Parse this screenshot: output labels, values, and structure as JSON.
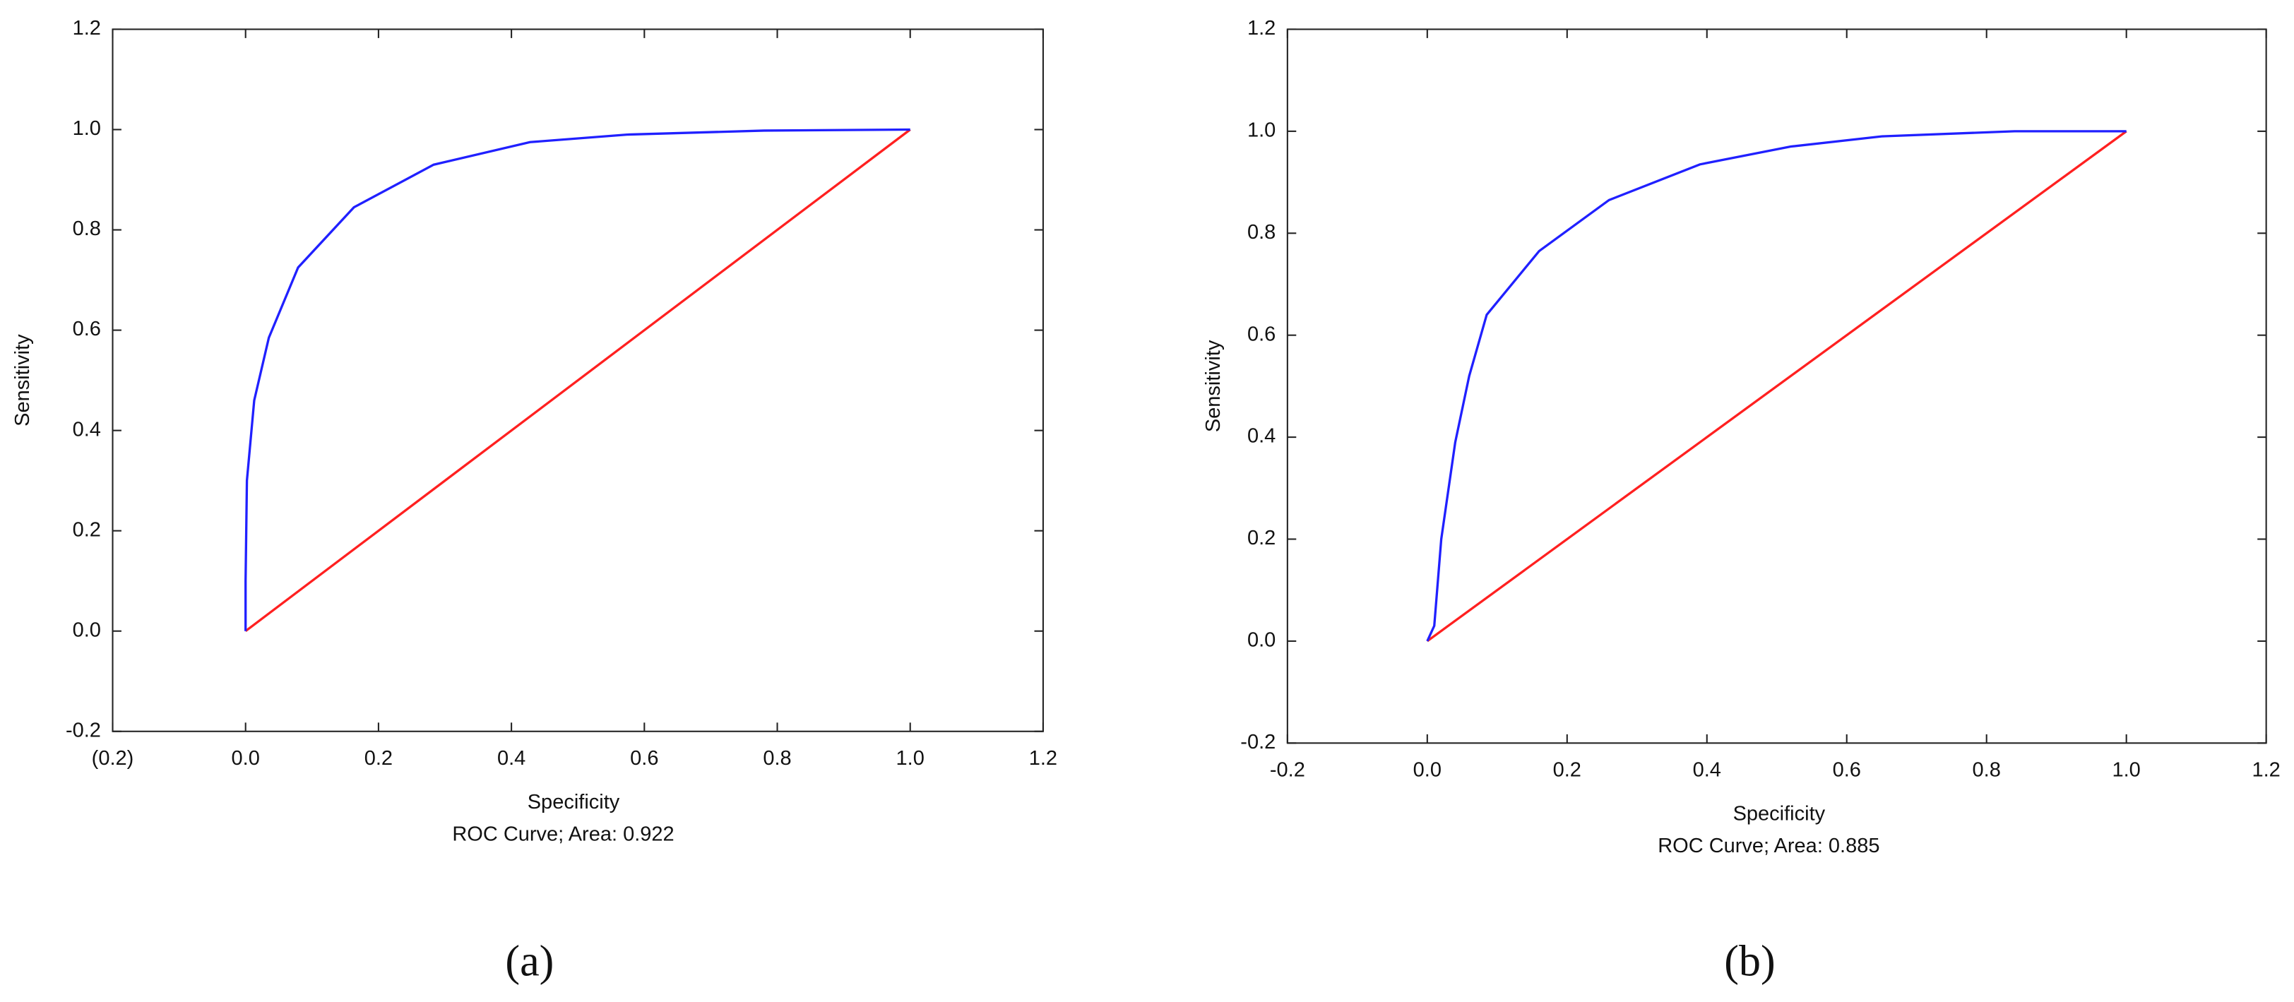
{
  "chart_data": [
    {
      "type": "line",
      "label": "(a)",
      "x_label": "Specificity",
      "y_label": "Sensitivity",
      "note": "ROC Curve; Area: 0.922",
      "xlim": [
        -0.2,
        1.2
      ],
      "ylim": [
        -0.2,
        1.2
      ],
      "xticks": [
        {
          "value": -0.2,
          "label": "(0.2)"
        },
        {
          "value": 0,
          "label": "0.0"
        },
        0.2,
        0.4,
        0.6,
        0.8,
        {
          "value": 1,
          "label": "1.0"
        },
        1.2
      ],
      "yticks": [
        -0.2,
        {
          "value": 0,
          "label": "0.0"
        },
        0.2,
        0.4,
        0.6,
        0.8,
        {
          "value": 1,
          "label": "1.0"
        },
        1.2
      ],
      "series": [
        {
          "color": "#ff2020",
          "x": [
            0,
            1
          ],
          "values": [
            0,
            1
          ]
        },
        {
          "color": "#2020ff",
          "x": [
            0,
            0,
            0.002,
            0.013,
            0.035,
            0.079,
            0.163,
            0.283,
            0.428,
            0.574,
            0.78,
            1
          ],
          "values": [
            0,
            0.1,
            0.3,
            0.46,
            0.585,
            0.725,
            0.845,
            0.93,
            0.975,
            0.99,
            0.998,
            1
          ]
        }
      ]
    },
    {
      "type": "line",
      "label": "(b)",
      "x_label": "Specificity",
      "y_label": "Sensitivity",
      "note": "ROC Curve; Area: 0.885",
      "xlim": [
        -0.2,
        1.2
      ],
      "ylim": [
        -0.2,
        1.2
      ],
      "xticks": [
        -0.2,
        {
          "value": 0,
          "label": "0.0"
        },
        0.2,
        0.4,
        0.6,
        0.8,
        {
          "value": 1,
          "label": "1.0"
        },
        1.2
      ],
      "yticks": [
        -0.2,
        {
          "value": 0,
          "label": "0.0"
        },
        0.2,
        0.4,
        0.6,
        0.8,
        {
          "value": 1,
          "label": "1.0"
        },
        1.2
      ],
      "series": [
        {
          "color": "#ff2020",
          "x": [
            0,
            1
          ],
          "values": [
            0,
            1
          ]
        },
        {
          "color": "#2020ff",
          "x": [
            0,
            0.01,
            0.02,
            0.04,
            0.06,
            0.085,
            0.16,
            0.26,
            0.39,
            0.52,
            0.65,
            0.84,
            1
          ],
          "values": [
            0,
            0.03,
            0.2,
            0.39,
            0.52,
            0.64,
            0.765,
            0.865,
            0.935,
            0.97,
            0.99,
            1,
            1
          ]
        }
      ]
    }
  ]
}
